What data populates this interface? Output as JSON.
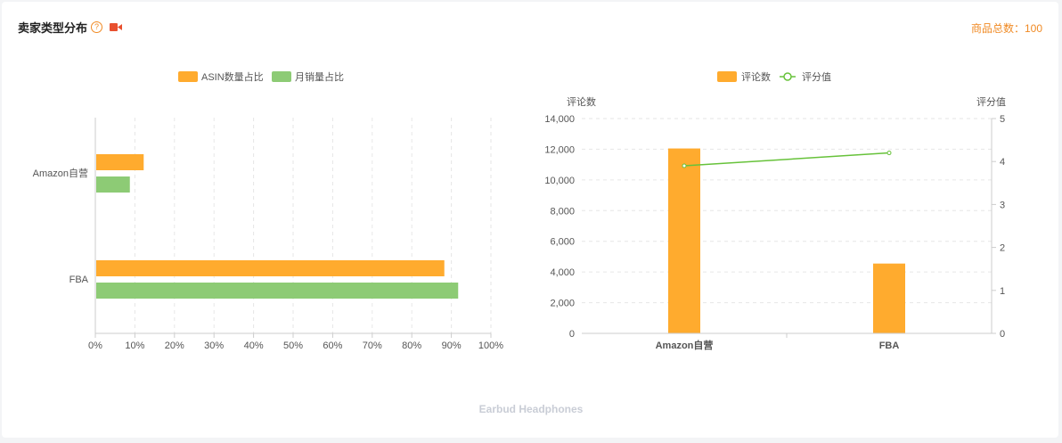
{
  "header": {
    "title": "卖家类型分布",
    "total_label": "商品总数：100"
  },
  "colors": {
    "orange": "#ffab2e",
    "green": "#8dcb75",
    "line": "#67c23a",
    "accent": "#f08a24"
  },
  "chart_data": [
    {
      "type": "bar",
      "orientation": "horizontal",
      "categories": [
        "Amazon自营",
        "FBA"
      ],
      "series": [
        {
          "name": "ASIN数量占比",
          "values": [
            12,
            88
          ]
        },
        {
          "name": "月销量占比",
          "values": [
            8.5,
            91.5
          ]
        }
      ],
      "xlim": [
        0,
        100
      ],
      "xticks": [
        "0%",
        "10%",
        "20%",
        "30%",
        "40%",
        "50%",
        "60%",
        "70%",
        "80%",
        "90%",
        "100%"
      ],
      "legend": "top-center",
      "grid": true
    },
    {
      "type": "bar",
      "categories": [
        "Amazon自营",
        "FBA"
      ],
      "series": [
        {
          "name": "评论数",
          "type": "bar",
          "values": [
            12050,
            4550
          ]
        },
        {
          "name": "评分值",
          "type": "line",
          "values": [
            3.9,
            4.2
          ]
        }
      ],
      "ylabel": "评论数",
      "ylabel_right": "评分值",
      "ylim": [
        0,
        14000
      ],
      "ylim_right": [
        0,
        5
      ],
      "yticks": [
        "0",
        "2,000",
        "4,000",
        "6,000",
        "8,000",
        "10,000",
        "12,000",
        "14,000"
      ],
      "yticks_right": [
        "0",
        "1",
        "2",
        "3",
        "4",
        "5"
      ],
      "legend": "top-center",
      "grid": true
    }
  ],
  "footer": {
    "label": "Earbud Headphones"
  }
}
